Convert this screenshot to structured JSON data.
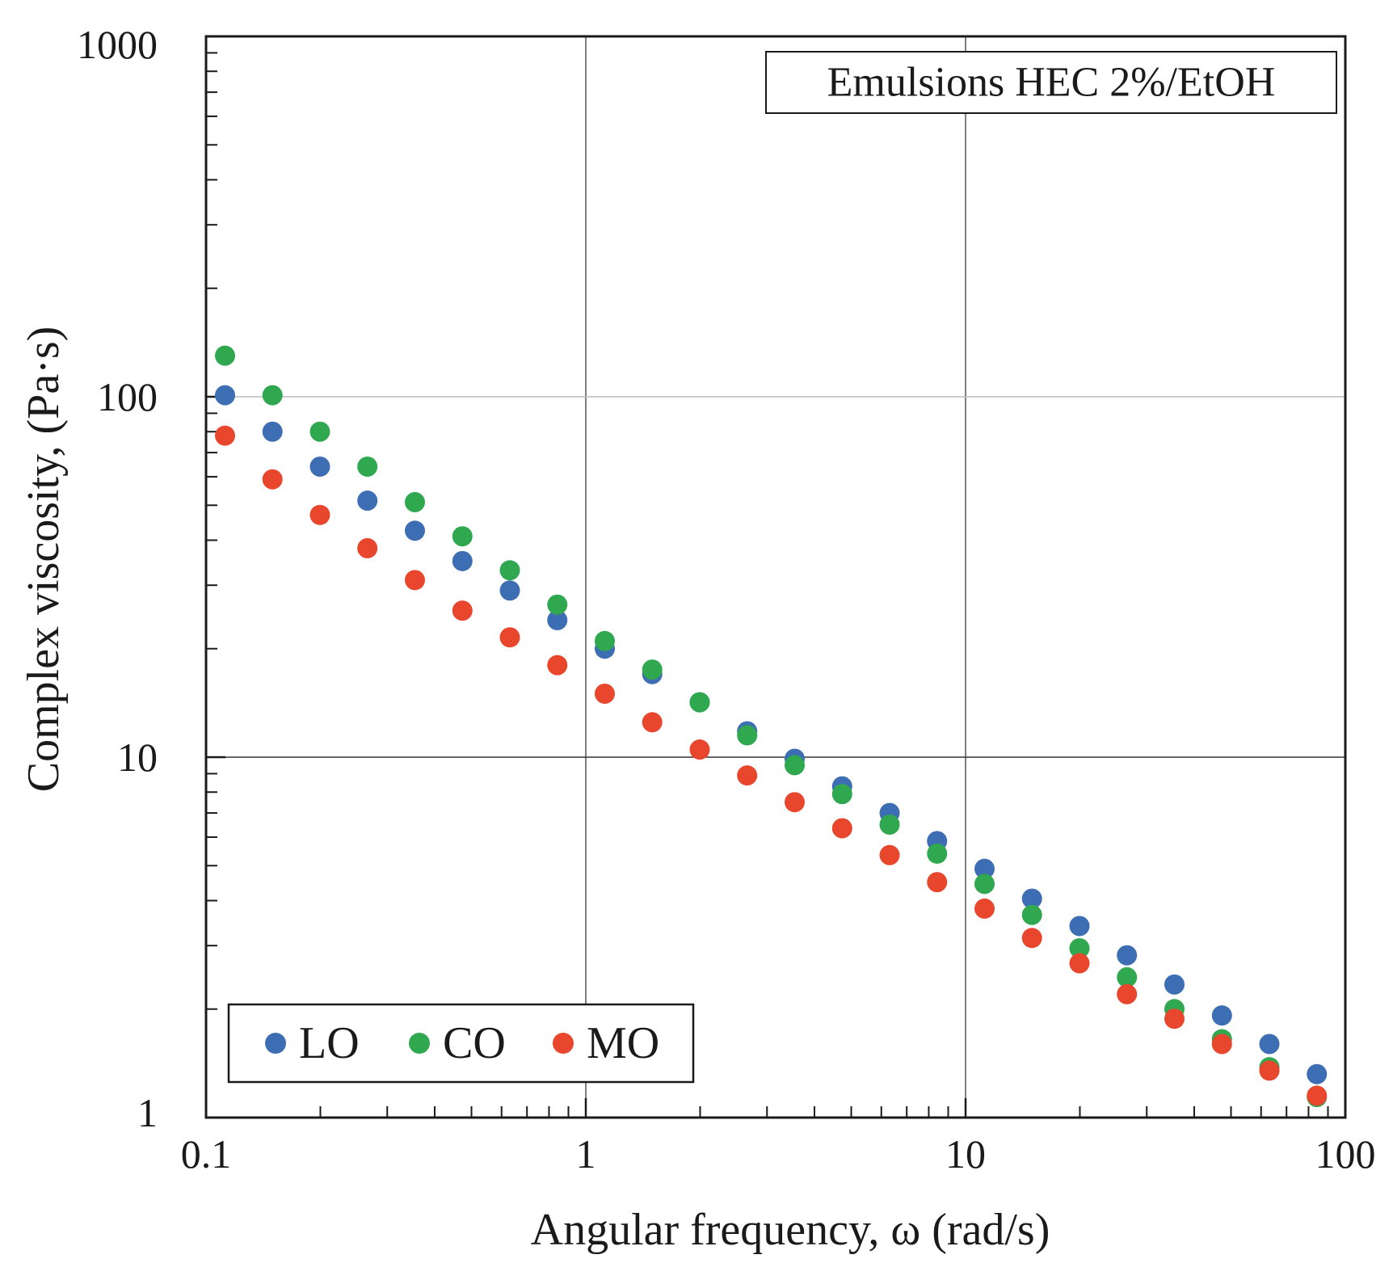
{
  "chart_data": {
    "type": "scatter",
    "title": "",
    "annotation": "Emulsions HEC 2%/EtOH",
    "xlabel": "Angular frequency, ω (rad/s)",
    "ylabel": "Complex viscosity, (Pa·s)",
    "xscale": "log",
    "yscale": "log",
    "xlim": [
      0.1,
      100
    ],
    "ylim": [
      1,
      1000
    ],
    "x_ticks": [
      0.1,
      1,
      10,
      100
    ],
    "x_tick_labels": [
      "0.1",
      "1",
      "10",
      "100"
    ],
    "y_ticks": [
      1,
      10,
      100,
      1000
    ],
    "y_tick_labels": [
      "1",
      "10",
      "100",
      "1000"
    ],
    "grid": true,
    "legend_position": "bottom-left",
    "x": [
      0.1122,
      0.1496,
      0.1995,
      0.266,
      0.3548,
      0.4732,
      0.631,
      0.8414,
      1.122,
      1.496,
      1.995,
      2.66,
      3.548,
      4.732,
      6.31,
      8.414,
      11.22,
      14.96,
      19.95,
      26.6,
      35.48,
      47.32,
      63.1,
      84.14
    ],
    "series": [
      {
        "name": "LO",
        "color": "#3d6eb4",
        "values": [
          101,
          80,
          64,
          51.5,
          42.5,
          35,
          29,
          24,
          20,
          17,
          14.2,
          11.8,
          9.9,
          8.3,
          7.0,
          5.85,
          4.9,
          4.05,
          3.4,
          2.82,
          2.34,
          1.92,
          1.6,
          1.32
        ]
      },
      {
        "name": "CO",
        "color": "#2fa84f",
        "values": [
          130,
          101,
          80,
          64,
          51,
          41,
          33,
          26.5,
          21,
          17.5,
          14.2,
          11.5,
          9.5,
          7.9,
          6.5,
          5.4,
          4.45,
          3.65,
          2.95,
          2.45,
          2.0,
          1.65,
          1.38,
          1.14
        ]
      },
      {
        "name": "MO",
        "color": "#e8472e",
        "values": [
          78,
          59,
          47,
          38,
          31,
          25.5,
          21.5,
          18,
          15,
          12.5,
          10.5,
          8.9,
          7.5,
          6.35,
          5.35,
          4.5,
          3.8,
          3.15,
          2.68,
          2.2,
          1.88,
          1.6,
          1.35,
          1.15
        ]
      }
    ]
  }
}
